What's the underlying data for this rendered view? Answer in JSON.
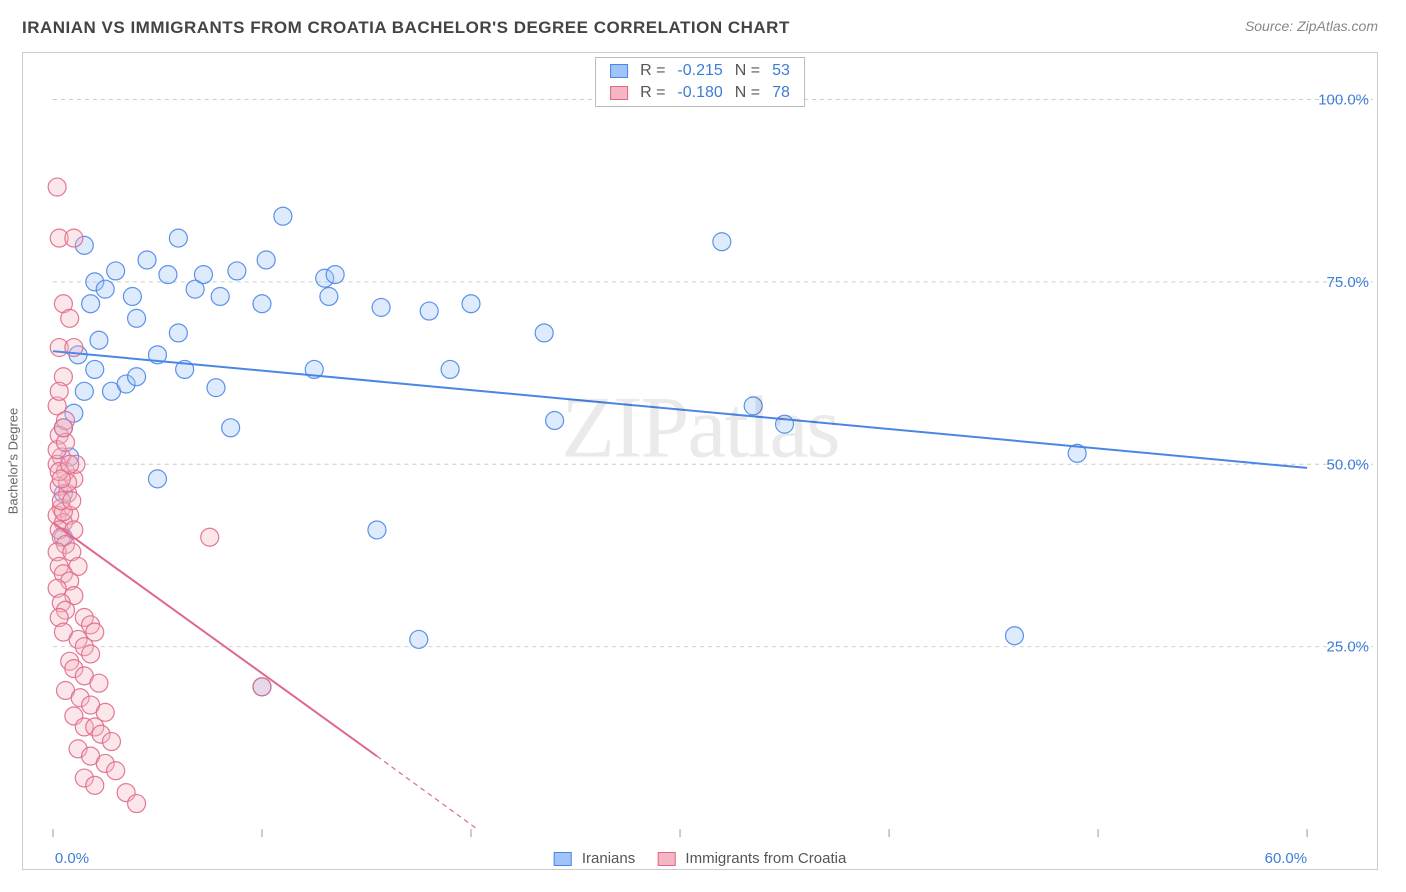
{
  "title": "IRANIAN VS IMMIGRANTS FROM CROATIA BACHELOR'S DEGREE CORRELATION CHART",
  "source": "Source: ZipAtlas.com",
  "ylabel": "Bachelor's Degree",
  "watermark": "ZIPatlas",
  "chart": {
    "type": "scatter",
    "background_color": "#ffffff",
    "grid_color": "#cccccc",
    "border_color": "#cccccc",
    "xlim": [
      0,
      60
    ],
    "ylim": [
      0,
      105
    ],
    "x_ticks": [
      0,
      10,
      20,
      30,
      40,
      50,
      60
    ],
    "x_tick_labels": [
      "0.0%",
      "",
      "",
      "",
      "",
      "",
      "60.0%"
    ],
    "y_ticks": [
      25,
      50,
      75,
      100
    ],
    "y_tick_labels": [
      "25.0%",
      "50.0%",
      "75.0%",
      "100.0%"
    ],
    "tick_label_color": "#3b7dd8",
    "tick_label_fontsize": 15,
    "ylabel_fontsize": 13,
    "ylabel_color": "#666666",
    "marker_radius": 9,
    "marker_fill_opacity": 0.35,
    "marker_stroke_opacity": 0.9,
    "marker_stroke_width": 1.2,
    "line_width": 2
  },
  "stats": [
    {
      "swatch_fill": "#9fc5f8",
      "swatch_border": "#4a86e8",
      "r_label": "R  =",
      "r_value": "-0.215",
      "n_label": "N  =",
      "n_value": "53"
    },
    {
      "swatch_fill": "#f4b6c2",
      "swatch_border": "#e06989",
      "r_label": "R  =",
      "r_value": "-0.180",
      "n_label": "N  =",
      "n_value": "78"
    }
  ],
  "x_legend": [
    {
      "swatch_fill": "#9fc5f8",
      "swatch_border": "#4a86e8",
      "label": "Iranians"
    },
    {
      "swatch_fill": "#f4b6c2",
      "swatch_border": "#e06989",
      "label": "Immigrants from Croatia"
    }
  ],
  "series": [
    {
      "name": "Iranians",
      "color_fill": "#9fc5f8",
      "color_stroke": "#4a86e8",
      "trend": {
        "x1": 0,
        "y1": 65.5,
        "x2": 60,
        "y2": 49.5,
        "dash": ""
      },
      "points": [
        [
          0.5,
          40
        ],
        [
          0.5,
          46
        ],
        [
          0.8,
          51
        ],
        [
          1.0,
          57
        ],
        [
          1.2,
          65
        ],
        [
          1.5,
          60
        ],
        [
          1.8,
          72
        ],
        [
          2.0,
          75
        ],
        [
          2.2,
          67
        ],
        [
          2.8,
          60
        ],
        [
          2.5,
          74
        ],
        [
          3.0,
          76.5
        ],
        [
          3.5,
          61
        ],
        [
          3.8,
          73
        ],
        [
          4.0,
          62
        ],
        [
          4.5,
          78
        ],
        [
          5.0,
          65
        ],
        [
          5.0,
          48
        ],
        [
          5.5,
          76
        ],
        [
          6.0,
          81
        ],
        [
          6.3,
          63
        ],
        [
          6.8,
          74
        ],
        [
          7.2,
          76
        ],
        [
          7.8,
          60.5
        ],
        [
          8.0,
          73
        ],
        [
          8.5,
          55
        ],
        [
          8.8,
          76.5
        ],
        [
          10.0,
          72
        ],
        [
          10.0,
          19.5
        ],
        [
          10.2,
          78
        ],
        [
          11.0,
          84
        ],
        [
          12.5,
          63
        ],
        [
          13.0,
          75.5
        ],
        [
          13.2,
          73
        ],
        [
          13.5,
          76
        ],
        [
          15.5,
          41
        ],
        [
          15.7,
          71.5
        ],
        [
          17.5,
          26
        ],
        [
          18.0,
          71
        ],
        [
          19.0,
          63
        ],
        [
          20.0,
          72
        ],
        [
          23.5,
          68
        ],
        [
          24.0,
          56
        ],
        [
          32.0,
          80.5
        ],
        [
          33.5,
          58
        ],
        [
          35.0,
          55.5
        ],
        [
          46.0,
          26.5
        ],
        [
          49.0,
          51.5
        ],
        [
          1.5,
          80
        ],
        [
          4.0,
          70
        ],
        [
          2.0,
          63
        ],
        [
          0.5,
          55
        ],
        [
          6.0,
          68
        ]
      ]
    },
    {
      "name": "Immigrants from Croatia",
      "color_fill": "#f4b6c2",
      "color_stroke": "#e06989",
      "trend": {
        "x1": 0,
        "y1": 42,
        "x2": 15.5,
        "y2": 10,
        "dash": ""
      },
      "trend_dashed": {
        "x1": 15.5,
        "y1": 10,
        "x2": 20.3,
        "y2": 0,
        "dash": "5 4"
      },
      "points": [
        [
          0.2,
          88
        ],
        [
          0.3,
          81
        ],
        [
          1.0,
          81
        ],
        [
          0.5,
          72
        ],
        [
          0.8,
          70
        ],
        [
          0.3,
          66
        ],
        [
          1.0,
          66
        ],
        [
          0.5,
          62
        ],
        [
          0.2,
          58
        ],
        [
          0.3,
          54
        ],
        [
          0.6,
          56
        ],
        [
          0.4,
          51
        ],
        [
          0.2,
          50
        ],
        [
          0.6,
          49
        ],
        [
          0.3,
          47
        ],
        [
          0.7,
          46
        ],
        [
          1.0,
          48
        ],
        [
          0.4,
          44
        ],
        [
          0.2,
          43
        ],
        [
          0.8,
          43
        ],
        [
          0.5,
          42
        ],
        [
          0.3,
          41
        ],
        [
          1.0,
          41
        ],
        [
          0.4,
          40
        ],
        [
          0.6,
          39
        ],
        [
          0.2,
          38
        ],
        [
          0.9,
          38
        ],
        [
          0.3,
          36
        ],
        [
          1.2,
          36
        ],
        [
          0.5,
          35
        ],
        [
          0.8,
          34
        ],
        [
          0.2,
          33
        ],
        [
          1.0,
          32
        ],
        [
          0.4,
          31
        ],
        [
          0.6,
          30
        ],
        [
          1.5,
          29
        ],
        [
          0.3,
          29
        ],
        [
          1.8,
          28
        ],
        [
          2.0,
          27
        ],
        [
          0.5,
          27
        ],
        [
          1.2,
          26
        ],
        [
          1.5,
          25
        ],
        [
          1.8,
          24
        ],
        [
          0.8,
          23
        ],
        [
          1.0,
          22
        ],
        [
          1.5,
          21
        ],
        [
          2.2,
          20
        ],
        [
          0.6,
          19
        ],
        [
          1.3,
          18
        ],
        [
          1.8,
          17
        ],
        [
          2.5,
          16
        ],
        [
          1.0,
          15.5
        ],
        [
          1.5,
          14
        ],
        [
          2.0,
          14
        ],
        [
          2.3,
          13
        ],
        [
          2.8,
          12
        ],
        [
          1.2,
          11
        ],
        [
          1.8,
          10
        ],
        [
          2.5,
          9
        ],
        [
          3.0,
          8
        ],
        [
          1.5,
          7
        ],
        [
          2.0,
          6
        ],
        [
          3.5,
          5
        ],
        [
          4.0,
          3.5
        ],
        [
          0.5,
          43.5
        ],
        [
          0.4,
          45
        ],
        [
          0.7,
          47.5
        ],
        [
          0.3,
          49
        ],
        [
          0.2,
          52
        ],
        [
          1.1,
          50
        ],
        [
          0.6,
          53
        ],
        [
          0.4,
          48
        ],
        [
          7.5,
          40
        ],
        [
          10.0,
          19.5
        ],
        [
          0.9,
          45
        ],
        [
          0.3,
          60
        ],
        [
          0.5,
          55
        ],
        [
          0.8,
          50
        ]
      ]
    }
  ]
}
